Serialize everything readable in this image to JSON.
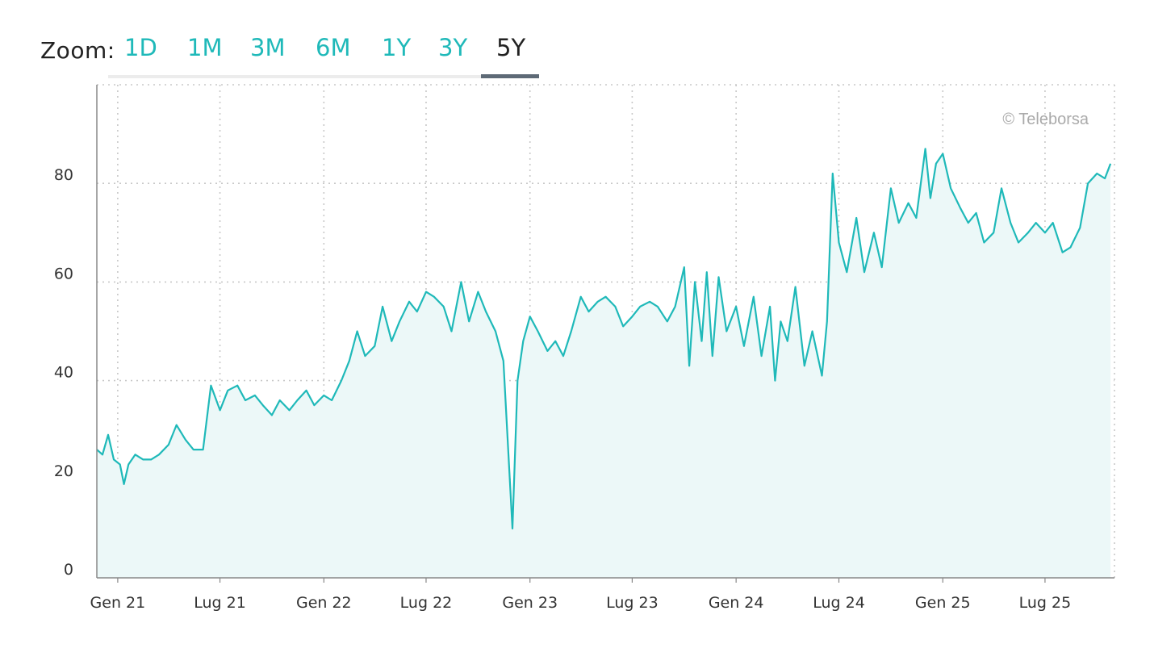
{
  "zoom": {
    "label": "Zoom:",
    "buttons": [
      "1D",
      "1M",
      "3M",
      "6M",
      "1Y",
      "3Y",
      "5Y"
    ],
    "active": "5Y"
  },
  "watermark": "© Teleborsa",
  "colors": {
    "line": "#1fb9b9",
    "area": "#ecf8f8",
    "grid": "#c8c8c8",
    "axis": "#888888",
    "zoom_active": "#222222",
    "zoom_inactive": "#1fb9b9"
  },
  "chart_data": {
    "type": "area",
    "title": "",
    "xlabel": "",
    "ylabel": "",
    "ylim": [
      0,
      100
    ],
    "yticks": [
      0,
      20,
      40,
      60,
      80
    ],
    "xlim": [
      "2020-11-25",
      "2025-11-01"
    ],
    "xticks": [
      {
        "label": "Gen 21",
        "date": "2021-01-01"
      },
      {
        "label": "Lug 21",
        "date": "2021-07-01"
      },
      {
        "label": "Gen 22",
        "date": "2022-01-01"
      },
      {
        "label": "Lug 22",
        "date": "2022-07-01"
      },
      {
        "label": "Gen 23",
        "date": "2023-01-01"
      },
      {
        "label": "Lug 23",
        "date": "2023-07-01"
      },
      {
        "label": "Gen 24",
        "date": "2024-01-01"
      },
      {
        "label": "Lug 24",
        "date": "2024-07-01"
      },
      {
        "label": "Gen 25",
        "date": "2025-01-01"
      },
      {
        "label": "Lug 25",
        "date": "2025-07-01"
      }
    ],
    "grid": true,
    "series": [
      {
        "points": [
          [
            "2020-11-25",
            26
          ],
          [
            "2020-12-05",
            25
          ],
          [
            "2020-12-15",
            29
          ],
          [
            "2020-12-25",
            24
          ],
          [
            "2021-01-05",
            23
          ],
          [
            "2021-01-12",
            19
          ],
          [
            "2021-01-20",
            23
          ],
          [
            "2021-02-01",
            25
          ],
          [
            "2021-02-15",
            24
          ],
          [
            "2021-03-01",
            24
          ],
          [
            "2021-03-15",
            25
          ],
          [
            "2021-04-01",
            27
          ],
          [
            "2021-04-15",
            31
          ],
          [
            "2021-05-01",
            28
          ],
          [
            "2021-05-15",
            26
          ],
          [
            "2021-06-01",
            26
          ],
          [
            "2021-06-15",
            39
          ],
          [
            "2021-07-01",
            34
          ],
          [
            "2021-07-15",
            38
          ],
          [
            "2021-08-01",
            39
          ],
          [
            "2021-08-15",
            36
          ],
          [
            "2021-09-01",
            37
          ],
          [
            "2021-09-15",
            35
          ],
          [
            "2021-10-01",
            33
          ],
          [
            "2021-10-15",
            36
          ],
          [
            "2021-11-01",
            34
          ],
          [
            "2021-11-15",
            36
          ],
          [
            "2021-12-01",
            38
          ],
          [
            "2021-12-15",
            35
          ],
          [
            "2022-01-01",
            37
          ],
          [
            "2022-01-15",
            36
          ],
          [
            "2022-02-01",
            40
          ],
          [
            "2022-02-15",
            44
          ],
          [
            "2022-03-01",
            50
          ],
          [
            "2022-03-15",
            45
          ],
          [
            "2022-04-01",
            47
          ],
          [
            "2022-04-15",
            55
          ],
          [
            "2022-05-01",
            48
          ],
          [
            "2022-05-15",
            52
          ],
          [
            "2022-06-01",
            56
          ],
          [
            "2022-06-15",
            54
          ],
          [
            "2022-07-01",
            58
          ],
          [
            "2022-07-15",
            57
          ],
          [
            "2022-08-01",
            55
          ],
          [
            "2022-08-15",
            50
          ],
          [
            "2022-09-01",
            60
          ],
          [
            "2022-09-15",
            52
          ],
          [
            "2022-10-01",
            58
          ],
          [
            "2022-10-15",
            54
          ],
          [
            "2022-11-01",
            50
          ],
          [
            "2022-11-15",
            44
          ],
          [
            "2022-12-01",
            10
          ],
          [
            "2022-12-10",
            40
          ],
          [
            "2022-12-20",
            48
          ],
          [
            "2023-01-01",
            53
          ],
          [
            "2023-01-15",
            50
          ],
          [
            "2023-02-01",
            46
          ],
          [
            "2023-02-15",
            48
          ],
          [
            "2023-03-01",
            45
          ],
          [
            "2023-03-15",
            50
          ],
          [
            "2023-04-01",
            57
          ],
          [
            "2023-04-15",
            54
          ],
          [
            "2023-05-01",
            56
          ],
          [
            "2023-05-15",
            57
          ],
          [
            "2023-06-01",
            55
          ],
          [
            "2023-06-15",
            51
          ],
          [
            "2023-07-01",
            53
          ],
          [
            "2023-07-15",
            55
          ],
          [
            "2023-08-01",
            56
          ],
          [
            "2023-08-15",
            55
          ],
          [
            "2023-09-01",
            52
          ],
          [
            "2023-09-15",
            55
          ],
          [
            "2023-10-01",
            63
          ],
          [
            "2023-10-10",
            43
          ],
          [
            "2023-10-20",
            60
          ],
          [
            "2023-11-01",
            48
          ],
          [
            "2023-11-10",
            62
          ],
          [
            "2023-11-20",
            45
          ],
          [
            "2023-12-01",
            61
          ],
          [
            "2023-12-15",
            50
          ],
          [
            "2024-01-01",
            55
          ],
          [
            "2024-01-15",
            47
          ],
          [
            "2024-02-01",
            57
          ],
          [
            "2024-02-15",
            45
          ],
          [
            "2024-03-01",
            55
          ],
          [
            "2024-03-10",
            40
          ],
          [
            "2024-03-20",
            52
          ],
          [
            "2024-04-01",
            48
          ],
          [
            "2024-04-15",
            59
          ],
          [
            "2024-05-01",
            43
          ],
          [
            "2024-05-15",
            50
          ],
          [
            "2024-06-01",
            41
          ],
          [
            "2024-06-10",
            52
          ],
          [
            "2024-06-20",
            82
          ],
          [
            "2024-07-01",
            68
          ],
          [
            "2024-07-15",
            62
          ],
          [
            "2024-08-01",
            73
          ],
          [
            "2024-08-15",
            62
          ],
          [
            "2024-09-01",
            70
          ],
          [
            "2024-09-15",
            63
          ],
          [
            "2024-10-01",
            79
          ],
          [
            "2024-10-15",
            72
          ],
          [
            "2024-11-01",
            76
          ],
          [
            "2024-11-15",
            73
          ],
          [
            "2024-12-01",
            87
          ],
          [
            "2024-12-10",
            77
          ],
          [
            "2024-12-20",
            84
          ],
          [
            "2025-01-01",
            86
          ],
          [
            "2025-01-15",
            79
          ],
          [
            "2025-02-01",
            75
          ],
          [
            "2025-02-15",
            72
          ],
          [
            "2025-03-01",
            74
          ],
          [
            "2025-03-15",
            68
          ],
          [
            "2025-04-01",
            70
          ],
          [
            "2025-04-15",
            79
          ],
          [
            "2025-05-01",
            72
          ],
          [
            "2025-05-15",
            68
          ],
          [
            "2025-06-01",
            70
          ],
          [
            "2025-06-15",
            72
          ],
          [
            "2025-07-01",
            70
          ],
          [
            "2025-07-15",
            72
          ],
          [
            "2025-08-01",
            66
          ],
          [
            "2025-08-15",
            67
          ],
          [
            "2025-09-01",
            71
          ],
          [
            "2025-09-15",
            80
          ],
          [
            "2025-10-01",
            82
          ],
          [
            "2025-10-15",
            81
          ],
          [
            "2025-10-25",
            84
          ]
        ]
      }
    ]
  }
}
